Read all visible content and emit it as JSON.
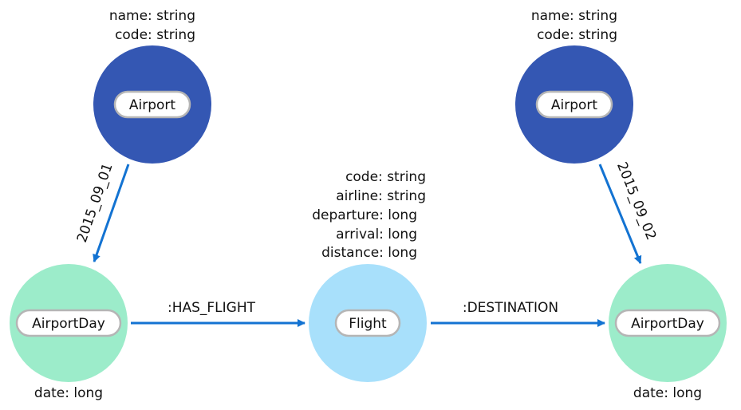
{
  "colors": {
    "airport": "#3457b3",
    "airport_day": "#9cecca",
    "flight": "#a8e0fb",
    "edge": "#1373d2",
    "pill_border": "#b5b5b5"
  },
  "nodes": {
    "airport_left": {
      "label": "Airport",
      "properties": [
        "name: string",
        "code: string"
      ]
    },
    "airport_right": {
      "label": "Airport",
      "properties": [
        "name: string",
        "code: string"
      ]
    },
    "airportday_left": {
      "label": "AirportDay",
      "properties": [
        "date: long"
      ]
    },
    "flight": {
      "label": "Flight",
      "properties": [
        "code: string",
        "airline: string",
        "departure: long",
        "arrival: long",
        "distance: long"
      ]
    },
    "airportday_right": {
      "label": "AirportDay",
      "properties": [
        "date: long"
      ]
    }
  },
  "edges": {
    "left_day": {
      "label": "2015_09_01"
    },
    "right_day": {
      "label": "2015_09_02"
    },
    "has_flight": {
      "label": ":HAS_FLIGHT"
    },
    "destination": {
      "label": ":DESTINATION"
    }
  }
}
